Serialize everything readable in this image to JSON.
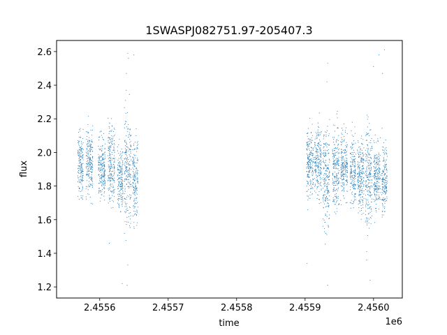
{
  "chart_data": {
    "type": "scatter",
    "title": "1SWASPJ082751.97-205407.3",
    "xlabel": "time",
    "ylabel": "flux",
    "x_offset_label": "1e6",
    "xlim": [
      2455537,
      2456042
    ],
    "ylim": [
      1.134,
      2.666
    ],
    "x_ticks": [
      2455600,
      2455700,
      2455800,
      2455900,
      2456000
    ],
    "x_tick_labels": [
      "2.4556",
      "2.4557",
      "2.4558",
      "2.4559",
      "2.4560"
    ],
    "y_ticks": [
      1.2,
      1.4,
      1.6,
      1.8,
      2.0,
      2.2,
      2.4,
      2.6
    ],
    "y_tick_labels": [
      "1.2",
      "1.4",
      "1.6",
      "1.8",
      "2.0",
      "2.2",
      "2.4",
      "2.6"
    ],
    "grid": false,
    "series": [
      {
        "color": "#1f77b4",
        "marker": "point",
        "segments": [
          {
            "x_range": [
              2455568,
              2455576
            ],
            "flux_center": 1.93,
            "flux_spread": 0.09
          },
          {
            "x_range": [
              2455580,
              2455590
            ],
            "flux_center": 1.95,
            "flux_spread": 0.1
          },
          {
            "x_range": [
              2455598,
              2455608
            ],
            "flux_center": 1.9,
            "flux_spread": 0.09
          },
          {
            "x_range": [
              2455612,
              2455622
            ],
            "flux_center": 1.93,
            "flux_spread": 0.11
          },
          {
            "x_range": [
              2455626,
              2455634
            ],
            "flux_center": 1.85,
            "flux_spread": 0.1
          },
          {
            "x_range": [
              2455636,
              2455646
            ],
            "flux_center": 1.9,
            "flux_spread": 0.16
          },
          {
            "x_range": [
              2455648,
              2455656
            ],
            "flux_center": 1.85,
            "flux_spread": 0.12
          },
          {
            "x_range": [
              2455902,
              2455912
            ],
            "flux_center": 1.92,
            "flux_spread": 0.1
          },
          {
            "x_range": [
              2455914,
              2455924
            ],
            "flux_center": 1.95,
            "flux_spread": 0.1
          },
          {
            "x_range": [
              2455926,
              2455936
            ],
            "flux_center": 1.85,
            "flux_spread": 0.15
          },
          {
            "x_range": [
              2455940,
              2455950
            ],
            "flux_center": 1.9,
            "flux_spread": 0.12
          },
          {
            "x_range": [
              2455952,
              2455962
            ],
            "flux_center": 1.92,
            "flux_spread": 0.1
          },
          {
            "x_range": [
              2455966,
              2455974
            ],
            "flux_center": 1.88,
            "flux_spread": 0.1
          },
          {
            "x_range": [
              2455976,
              2455986
            ],
            "flux_center": 1.87,
            "flux_spread": 0.1
          },
          {
            "x_range": [
              2455988,
              2455998
            ],
            "flux_center": 1.85,
            "flux_spread": 0.15
          },
          {
            "x_range": [
              2456000,
              2456010
            ],
            "flux_center": 1.86,
            "flux_spread": 0.1
          },
          {
            "x_range": [
              2456012,
              2456020
            ],
            "flux_center": 1.85,
            "flux_spread": 0.1
          }
        ],
        "outliers": [
          {
            "x": 2455641,
            "y": 2.59
          },
          {
            "x": 2455642,
            "y": 2.56
          },
          {
            "x": 2455650,
            "y": 2.58
          },
          {
            "x": 2455639,
            "y": 2.47
          },
          {
            "x": 2455640,
            "y": 1.21
          },
          {
            "x": 2455633,
            "y": 1.22
          },
          {
            "x": 2455641,
            "y": 1.33
          },
          {
            "x": 2455933,
            "y": 2.53
          },
          {
            "x": 2455932,
            "y": 2.42
          },
          {
            "x": 2455933,
            "y": 1.21
          },
          {
            "x": 2456000,
            "y": 2.51
          },
          {
            "x": 2456008,
            "y": 2.58
          },
          {
            "x": 2456013,
            "y": 2.47
          },
          {
            "x": 2456016,
            "y": 2.61
          },
          {
            "x": 2455990,
            "y": 1.36
          },
          {
            "x": 2455990,
            "y": 1.41
          },
          {
            "x": 2455903,
            "y": 1.34
          },
          {
            "x": 2455995,
            "y": 1.24
          },
          {
            "x": 2455614,
            "y": 1.46
          }
        ]
      }
    ]
  }
}
